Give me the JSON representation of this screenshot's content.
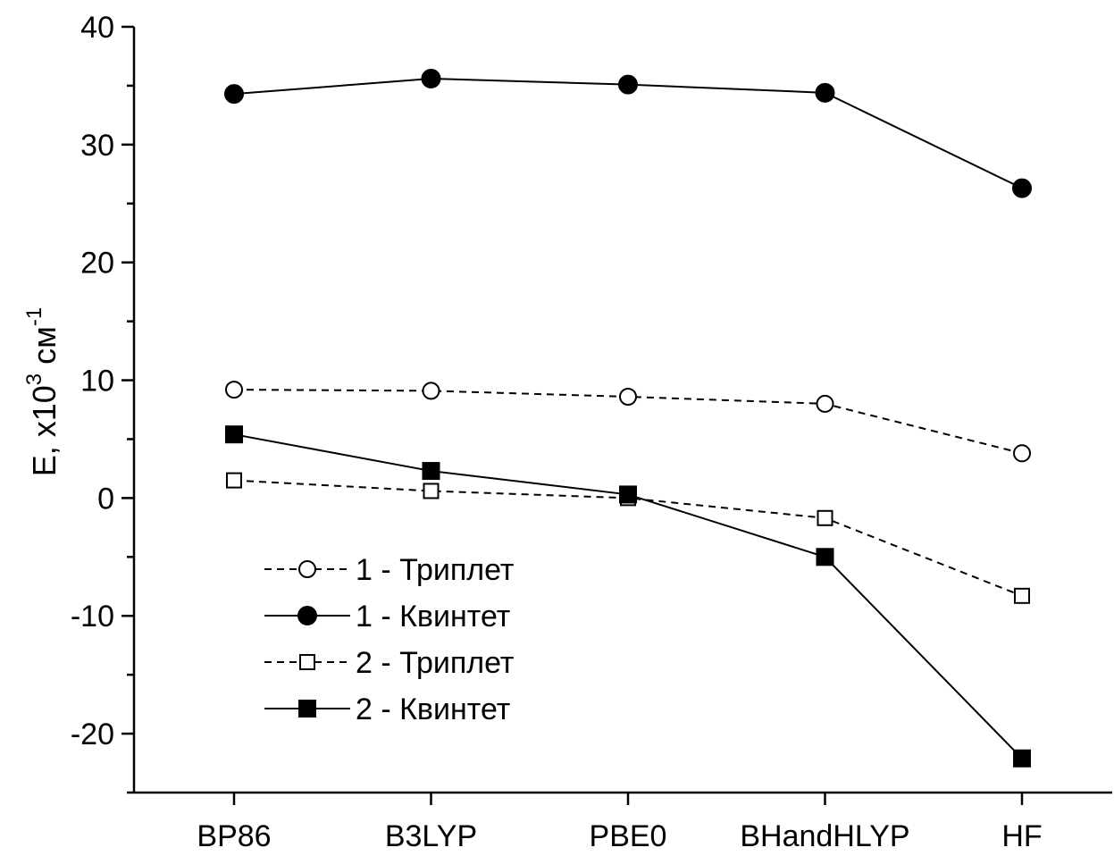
{
  "chart_data": {
    "type": "line",
    "title": "",
    "xlabel": "",
    "ylabel": {
      "base": "E, x10",
      "exp": "3",
      "unit": " см",
      "unit_exp": "-1"
    },
    "ylim": [
      -25,
      40
    ],
    "yticks": [
      -20,
      -10,
      0,
      10,
      20,
      30,
      40
    ],
    "yminor_step": 5,
    "grid": false,
    "legend_position": "lower-left",
    "categories": [
      "BP86",
      "B3LYP",
      "PBE0",
      "BHandHLYP",
      "HF"
    ],
    "series": [
      {
        "name": "1 - Триплет",
        "style": "dashed",
        "marker": "circle",
        "filled": false,
        "values": [
          9.2,
          9.1,
          8.6,
          8.0,
          3.8
        ]
      },
      {
        "name": "1 - Квинтет",
        "style": "solid",
        "marker": "circle",
        "filled": true,
        "values": [
          34.3,
          35.6,
          35.1,
          34.4,
          26.3
        ]
      },
      {
        "name": "2 - Триплет",
        "style": "dashed",
        "marker": "square",
        "filled": false,
        "values": [
          1.5,
          0.6,
          0.0,
          -1.7,
          -8.3
        ]
      },
      {
        "name": "2 - Квинтет",
        "style": "solid",
        "marker": "square",
        "filled": true,
        "values": [
          5.4,
          2.3,
          0.3,
          -5.0,
          -22.1
        ]
      }
    ]
  }
}
